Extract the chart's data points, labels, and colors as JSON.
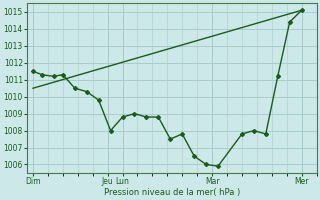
{
  "background_color": "#cce8e8",
  "grid_color": "#aacccc",
  "line_color": "#1a5c1a",
  "ylabel": "Pression niveau de la mer( hPa )",
  "ylim": [
    1005.5,
    1015.5
  ],
  "yticks": [
    1006,
    1007,
    1008,
    1009,
    1010,
    1011,
    1012,
    1013,
    1014,
    1015
  ],
  "line1_x": [
    0,
    9
  ],
  "line1_y": [
    1010.5,
    1015.1
  ],
  "line2_x": [
    0,
    0.3,
    0.7,
    1.0,
    1.4,
    1.8,
    2.2,
    2.6,
    3.0,
    3.4,
    3.8,
    4.2,
    4.6,
    5.0,
    5.4,
    5.8,
    6.2,
    7.0,
    7.4,
    7.8,
    8.2,
    8.6,
    9.0
  ],
  "line2_y": [
    1011.5,
    1011.3,
    1011.2,
    1011.3,
    1010.5,
    1010.3,
    1009.8,
    1008.0,
    1008.8,
    1009.0,
    1008.8,
    1008.8,
    1007.5,
    1007.8,
    1006.5,
    1006.0,
    1005.9,
    1007.8,
    1008.0,
    1007.8,
    1011.2,
    1014.4,
    1015.1
  ],
  "xtick_positions": [
    0,
    2.5,
    3.0,
    6.0,
    9.0
  ],
  "xtick_labels": [
    "Dim",
    "Jeu",
    "Lun",
    "Mar",
    "Mer"
  ],
  "xlim": [
    -0.2,
    9.5
  ]
}
